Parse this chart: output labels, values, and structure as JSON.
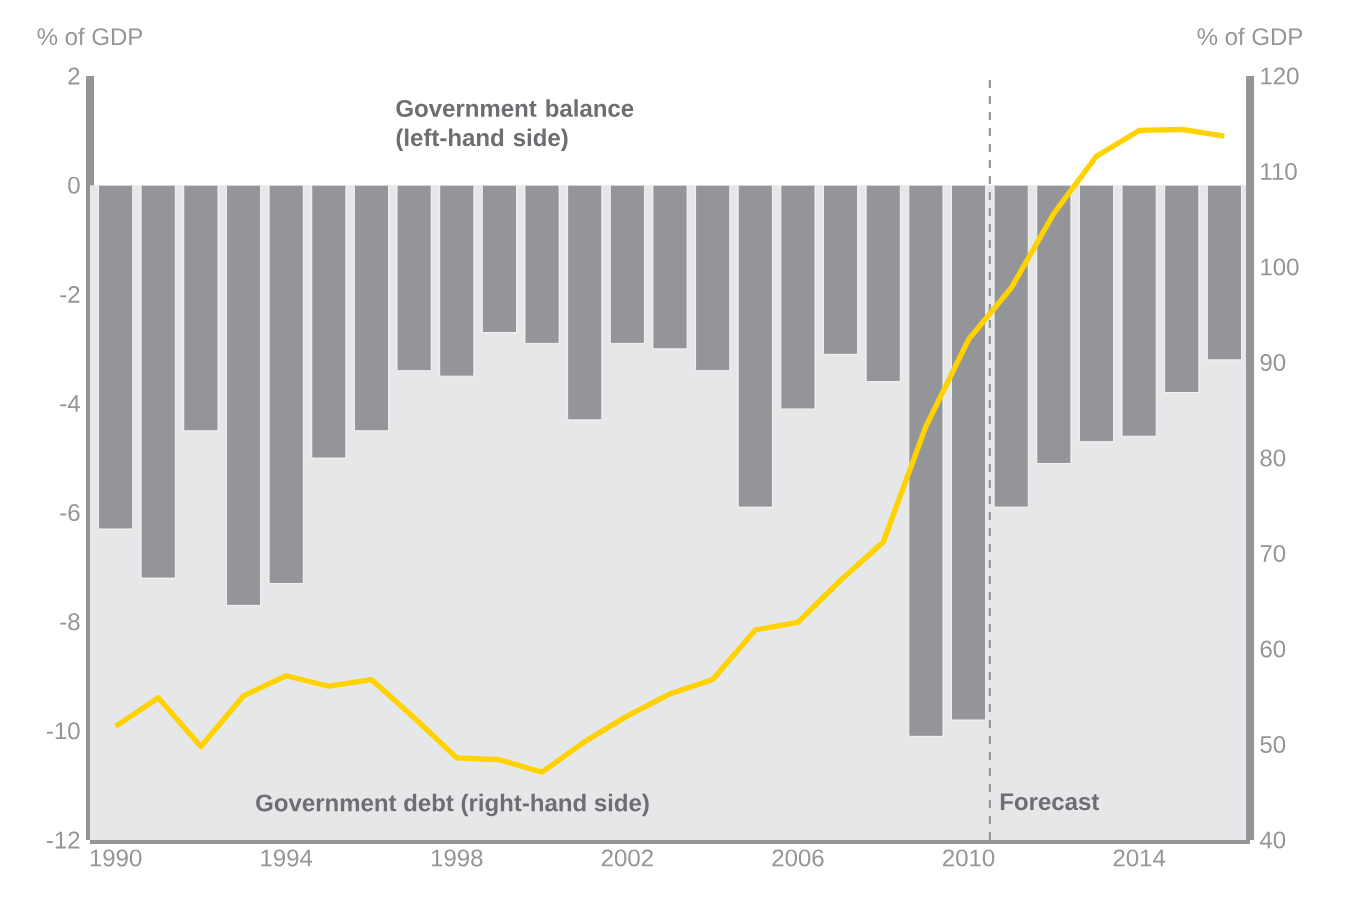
{
  "chart_data": {
    "type": "bar",
    "ylabel": "% of GDP",
    "y2label": "% of GDP",
    "x": [
      1990,
      1991,
      1992,
      1993,
      1994,
      1995,
      1996,
      1997,
      1998,
      1999,
      2000,
      2001,
      2002,
      2003,
      2004,
      2005,
      2006,
      2007,
      2008,
      2009,
      2010,
      2011,
      2012,
      2013,
      2014,
      2015,
      2016
    ],
    "series": [
      {
        "name": "Government balance (left-hand side)",
        "color": "#939598",
        "values": [
          -6.3,
          -7.2,
          -4.5,
          -7.7,
          -7.3,
          -5.0,
          -4.5,
          -3.4,
          -3.5,
          -2.7,
          -2.9,
          -4.3,
          -2.9,
          -3.0,
          -3.4,
          -5.9,
          -4.1,
          -3.1,
          -3.6,
          -10.1,
          -9.8,
          -5.9,
          -5.1,
          -4.7,
          -4.6,
          -3.8,
          -3.2
        ]
      },
      {
        "name": "Government debt (right-hand side)",
        "type": "line",
        "axis": "y2",
        "color": "#ffd200",
        "values": [
          51.9,
          54.9,
          49.8,
          55.1,
          57.2,
          56.1,
          56.8,
          52.8,
          48.6,
          48.4,
          47.1,
          50.3,
          53.0,
          55.3,
          56.8,
          62.0,
          62.8,
          67.2,
          71.2,
          83.3,
          92.4,
          97.8,
          105.6,
          111.6,
          114.3,
          114.4,
          113.7
        ]
      }
    ],
    "xlim": [
      1989.4,
      2016.6
    ],
    "xticks": [
      1990,
      1994,
      1998,
      2002,
      2006,
      2010,
      2014
    ],
    "ylim": [
      -12,
      2
    ],
    "yticks": [
      -12,
      -10,
      -8,
      -6,
      -4,
      -2,
      0,
      2
    ],
    "y2lim": [
      40,
      120
    ],
    "y2ticks": [
      40,
      50,
      60,
      70,
      80,
      90,
      100,
      110,
      120
    ],
    "bands": [
      {
        "axis": "y",
        "from": -12,
        "to": 0,
        "color": "#e6e7e8"
      }
    ],
    "ref_lines": [
      {
        "axis": "x",
        "value": 2010.5,
        "label": "Forecast",
        "color": "#939598",
        "line_style": "dashed"
      }
    ],
    "grid": false
  }
}
